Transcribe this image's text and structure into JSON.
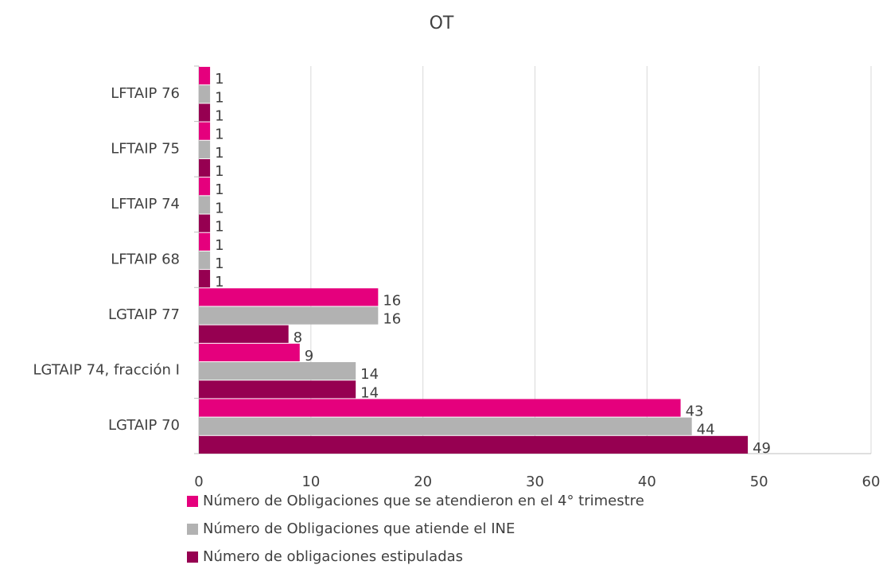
{
  "chart_data": {
    "type": "bar",
    "orientation": "horizontal",
    "title": "OT",
    "categories": [
      "LFTAIP 76",
      "LFTAIP 75",
      "LFTAIP 74",
      "LFTAIP 68",
      "LGTAIP 77",
      "LGTAIP 74, fracción I",
      "LGTAIP 70"
    ],
    "series": [
      {
        "name": "Número de Obligaciones que se atendieron en el 4° trimestre",
        "color": "#e5007d",
        "values": [
          1,
          1,
          1,
          1,
          16,
          9,
          43
        ]
      },
      {
        "name": "Número de Obligaciones que atiende el INE",
        "color": "#b2b2b2",
        "values": [
          1,
          1,
          1,
          1,
          16,
          14,
          44
        ]
      },
      {
        "name": "Número de obligaciones estipuladas",
        "color": "#960051",
        "values": [
          1,
          1,
          1,
          1,
          8,
          14,
          49
        ]
      }
    ],
    "xlim": [
      0,
      60
    ],
    "xticks": [
      0,
      10,
      20,
      30,
      40,
      50,
      60
    ],
    "grid": true,
    "legend": "bottom"
  }
}
